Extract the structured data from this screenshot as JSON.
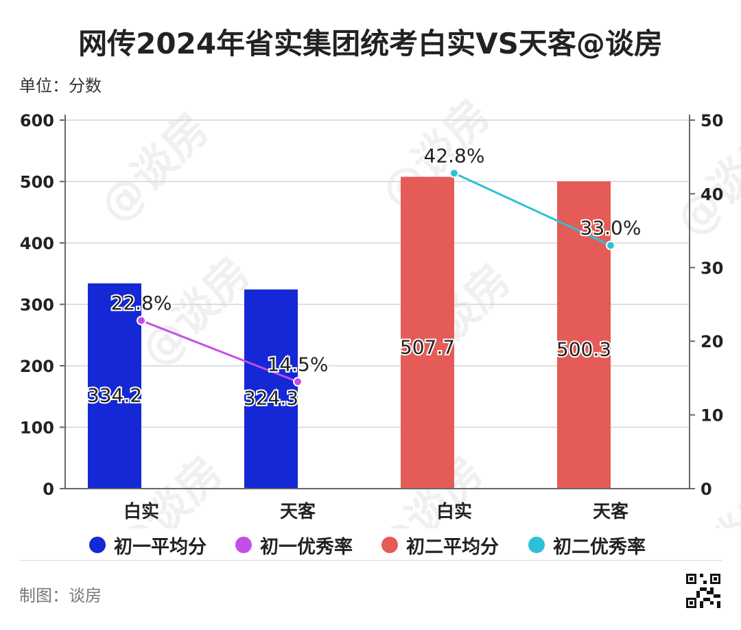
{
  "title": "网传2024年省实集团统考白实VS天客@谈房",
  "unit_label": "单位：分数",
  "credit": "制图：谈房",
  "watermark": "@谈房",
  "legend": [
    {
      "label": "初一平均分",
      "color": "#1428d6"
    },
    {
      "label": "初一优秀率",
      "color": "#c44fe6"
    },
    {
      "label": "初二平均分",
      "color": "#e45b57"
    },
    {
      "label": "初二优秀率",
      "color": "#2ec0d9"
    }
  ],
  "chart_data": {
    "type": "bar",
    "categories": [
      "白实",
      "天客",
      "白实",
      "天客"
    ],
    "left_axis": {
      "min": 0,
      "max": 600,
      "ticks": [
        0,
        100,
        200,
        300,
        400,
        500,
        600
      ]
    },
    "right_axis": {
      "min": 0,
      "max": 50,
      "ticks": [
        0,
        10,
        20,
        30,
        40,
        50
      ]
    },
    "grid": true,
    "legend_position": "bottom",
    "series": [
      {
        "name": "初一平均分",
        "kind": "bar",
        "axis": "left",
        "color": "#1428d6",
        "points": [
          {
            "category_index": 0,
            "value": 334.2,
            "label": "334.2"
          },
          {
            "category_index": 1,
            "value": 324.3,
            "label": "324.3"
          }
        ]
      },
      {
        "name": "初一优秀率",
        "kind": "line",
        "axis": "right",
        "color": "#c44fe6",
        "points": [
          {
            "category_index": 0,
            "value": 22.8,
            "label": "22.8%"
          },
          {
            "category_index": 1,
            "value": 14.5,
            "label": "14.5%"
          }
        ]
      },
      {
        "name": "初二平均分",
        "kind": "bar",
        "axis": "left",
        "color": "#e45b57",
        "points": [
          {
            "category_index": 2,
            "value": 507.7,
            "label": "507.7"
          },
          {
            "category_index": 3,
            "value": 500.3,
            "label": "500.3"
          }
        ]
      },
      {
        "name": "初二优秀率",
        "kind": "line",
        "axis": "right",
        "color": "#2ec0d9",
        "points": [
          {
            "category_index": 2,
            "value": 42.8,
            "label": "42.8%"
          },
          {
            "category_index": 3,
            "value": 33.0,
            "label": "33.0%"
          }
        ]
      }
    ]
  }
}
